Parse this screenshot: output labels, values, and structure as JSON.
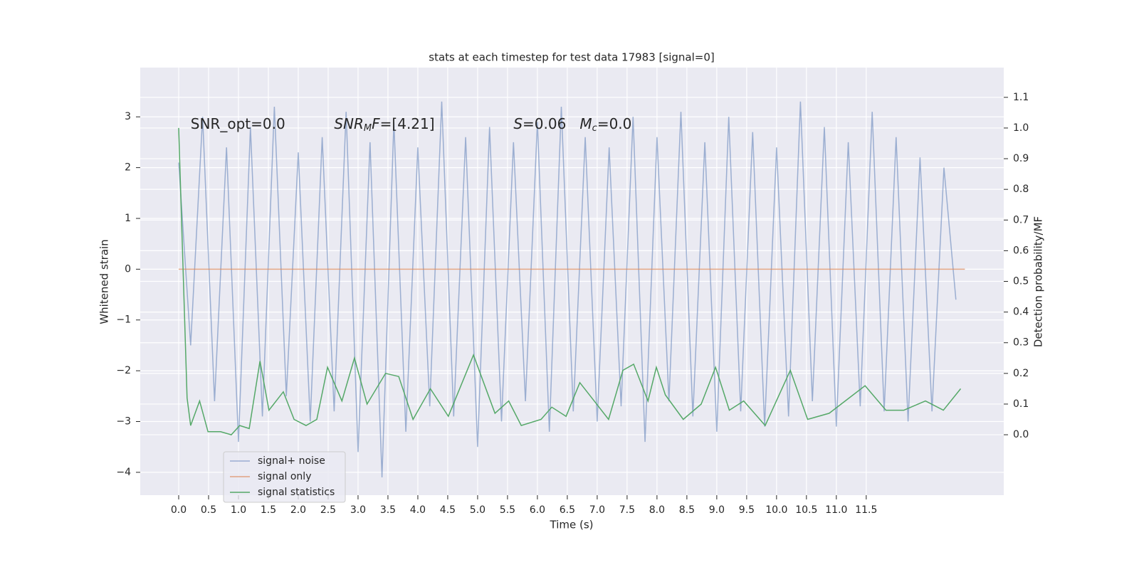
{
  "chart_data": {
    "type": "line",
    "title": "stats at each timestep for test data 17983 [signal=0]",
    "x_label": "Time (s)",
    "y_label": "Whitened strain",
    "y2_label": "Detection probability/MF",
    "xlim": [
      -0.643,
      13.8
    ],
    "ylim": [
      -4.45,
      3.97
    ],
    "y2lim": [
      -0.197,
      1.197
    ],
    "grid": true,
    "legend": "lower left",
    "xticks": [
      {
        "value": 0,
        "label": "0.0"
      },
      0.5,
      {
        "value": 1,
        "label": "1.0"
      },
      1.5,
      {
        "value": 2,
        "label": "2.0"
      },
      2.5,
      {
        "value": 3,
        "label": "3.0"
      },
      3.5,
      {
        "value": 4,
        "label": "4.0"
      },
      4.5,
      {
        "value": 5,
        "label": "5.0"
      },
      5.5,
      {
        "value": 6,
        "label": "6.0"
      },
      6.5,
      {
        "value": 7,
        "label": "7.0"
      },
      7.5,
      {
        "value": 8,
        "label": "8.0"
      },
      8.5,
      {
        "value": 9,
        "label": "9.0"
      },
      9.5,
      {
        "value": 10,
        "label": "10.0"
      },
      10.5,
      {
        "value": 11,
        "label": "11.0"
      },
      11.5
    ],
    "yticks": [
      {
        "value": -4,
        "label": "−4"
      },
      {
        "value": -3,
        "label": "−3"
      },
      {
        "value": -2,
        "label": "−2"
      },
      {
        "value": -1,
        "label": "−1"
      },
      0,
      1,
      2,
      3
    ],
    "y2ticks": [
      {
        "value": 0,
        "label": "0.0"
      },
      0.1,
      0.2,
      0.3,
      0.4,
      0.5,
      0.6,
      0.7,
      0.8,
      0.9,
      {
        "value": 1,
        "label": "1.0"
      },
      1.1
    ],
    "annotations": [
      {
        "x": 0.2,
        "y": 2.85,
        "parts": [
          {
            "text": "SNR_opt=0.0"
          }
        ]
      },
      {
        "x": 2.6,
        "y": 2.85,
        "parts": [
          {
            "text": "SNR",
            "italic": true
          },
          {
            "text": "M",
            "italic": true,
            "sub": true
          },
          {
            "text": "F",
            "italic": true
          },
          {
            "text": "=[4.21]"
          }
        ]
      },
      {
        "x": 5.6,
        "y": 2.85,
        "parts": [
          {
            "text": "S",
            "italic": true
          },
          {
            "text": "=0.06   "
          },
          {
            "text": "M",
            "italic": true
          },
          {
            "text": "c",
            "italic": true,
            "sub": true
          },
          {
            "text": "=0.0"
          }
        ]
      }
    ],
    "series": [
      {
        "name": "signal+ noise",
        "color": "#4c72b0",
        "opacity": 0.5,
        "x": [
          0,
          0.2,
          0.4,
          0.6,
          0.8,
          1,
          1.2,
          1.4,
          1.6,
          1.8,
          2,
          2.2,
          2.4,
          2.6,
          2.8,
          3,
          3.2,
          3.4,
          3.6,
          3.8,
          4,
          4.2,
          4.4,
          4.6,
          4.8,
          5,
          5.2,
          5.4,
          5.6,
          5.8,
          6,
          6.2,
          6.4,
          6.6,
          6.8,
          7,
          7.2,
          7.4,
          7.6,
          7.8,
          8,
          8.2,
          8.4,
          8.6,
          8.8,
          9,
          9.2,
          9.4,
          9.6,
          9.8,
          10,
          10.2,
          10.4,
          10.6,
          10.8,
          11,
          11.2,
          11.4,
          11.6,
          11.8,
          12,
          12.2,
          12.4,
          12.6,
          12.8,
          13
        ],
        "values": [
          2.1,
          -1.5,
          3.0,
          -2.6,
          2.4,
          -3.4,
          2.8,
          -2.9,
          3.2,
          -2.5,
          2.3,
          -3.0,
          2.6,
          -2.8,
          3.1,
          -3.6,
          2.5,
          -4.1,
          2.9,
          -3.2,
          2.4,
          -2.7,
          3.3,
          -2.9,
          2.6,
          -3.5,
          2.8,
          -3.0,
          2.5,
          -2.6,
          2.9,
          -3.2,
          3.2,
          -2.8,
          2.6,
          -3.0,
          2.4,
          -2.7,
          3.0,
          -3.4,
          2.6,
          -2.6,
          3.1,
          -2.9,
          2.5,
          -3.2,
          3.0,
          -2.8,
          2.7,
          -3.1,
          2.4,
          -2.9,
          3.3,
          -2.6,
          2.8,
          -3.1,
          2.5,
          -2.7,
          3.1,
          -2.8,
          2.6,
          -3.0,
          2.2,
          -2.8,
          2.0,
          -0.6
        ]
      },
      {
        "name": "signal only",
        "color": "#dd8452",
        "opacity": 0.7,
        "x": [
          0,
          13.15
        ],
        "values": [
          0,
          0
        ]
      },
      {
        "name": "signal statistics",
        "color": "#55a868",
        "opacity": 1,
        "axis": "y2",
        "x": [
          0,
          0.14,
          0.2,
          0.35,
          0.49,
          0.7,
          0.88,
          1.02,
          1.18,
          1.36,
          1.51,
          1.75,
          1.93,
          2.13,
          2.31,
          2.49,
          2.73,
          2.94,
          3.15,
          3.46,
          3.68,
          3.92,
          4.21,
          4.51,
          4.93,
          5.29,
          5.52,
          5.73,
          6.06,
          6.24,
          6.48,
          6.71,
          6.95,
          7.19,
          7.43,
          7.61,
          7.85,
          7.99,
          8.14,
          8.44,
          8.74,
          8.98,
          9.21,
          9.45,
          9.81,
          10.23,
          10.52,
          10.88,
          11.48,
          11.83,
          12.13,
          12.49,
          12.79,
          13.08
        ],
        "values": [
          1.0,
          0.12,
          0.03,
          0.11,
          0.01,
          0.01,
          0.0,
          0.03,
          0.02,
          0.24,
          0.08,
          0.14,
          0.05,
          0.03,
          0.05,
          0.22,
          0.11,
          0.25,
          0.1,
          0.2,
          0.19,
          0.05,
          0.15,
          0.06,
          0.26,
          0.07,
          0.11,
          0.03,
          0.05,
          0.09,
          0.06,
          0.17,
          0.11,
          0.05,
          0.21,
          0.23,
          0.11,
          0.22,
          0.13,
          0.05,
          0.1,
          0.22,
          0.08,
          0.11,
          0.03,
          0.21,
          0.05,
          0.07,
          0.16,
          0.08,
          0.08,
          0.11,
          0.08,
          0.15
        ]
      }
    ]
  }
}
